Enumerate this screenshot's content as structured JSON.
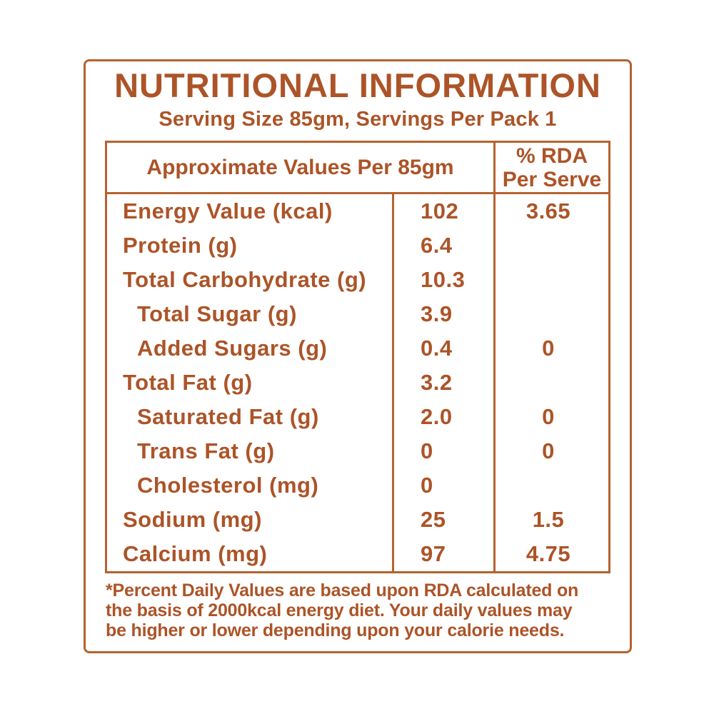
{
  "colors": {
    "text": "#AC5428",
    "border": "#B6622F",
    "background": "#FFFFFF"
  },
  "title": "NUTRITIONAL INFORMATION",
  "subtitle": "Serving Size 85gm, Servings Per Pack 1",
  "table": {
    "header": {
      "col_main": "Approximate Values Per 85gm",
      "col_rda_line1": "% RDA",
      "col_rda_line2": "Per Serve"
    },
    "rows": [
      {
        "name": "Energy Value (kcal)",
        "value": "102",
        "rda": "3.65",
        "indent": false
      },
      {
        "name": "Protein (g)",
        "value": "6.4",
        "rda": "",
        "indent": false
      },
      {
        "name": "Total Carbohydrate (g)",
        "value": "10.3",
        "rda": "",
        "indent": false
      },
      {
        "name": "Total Sugar (g)",
        "value": "3.9",
        "rda": "",
        "indent": true
      },
      {
        "name": "Added Sugars (g)",
        "value": "0.4",
        "rda": "0",
        "indent": true
      },
      {
        "name": "Total Fat (g)",
        "value": "3.2",
        "rda": "",
        "indent": false
      },
      {
        "name": "Saturated Fat (g)",
        "value": "2.0",
        "rda": "0",
        "indent": true
      },
      {
        "name": "Trans Fat (g)",
        "value": "0",
        "rda": "0",
        "indent": true
      },
      {
        "name": "Cholesterol (mg)",
        "value": "0",
        "rda": "",
        "indent": true
      },
      {
        "name": "Sodium (mg)",
        "value": "25",
        "rda": "1.5",
        "indent": false
      },
      {
        "name": "Calcium (mg)",
        "value": "97",
        "rda": "4.75",
        "indent": false
      }
    ]
  },
  "footnote": {
    "full_text": "*Percent Daily Values are based upon RDA calculated on the basis of 2000kcal energy diet. Your daily values may be higher or lower depending upon your calorie needs.",
    "lines": [
      "*Percent Daily Values are based upon RDA calculated on",
      "the basis of 2000kcal energy diet. Your daily values may",
      "be higher or lower depending upon your calorie needs."
    ]
  }
}
